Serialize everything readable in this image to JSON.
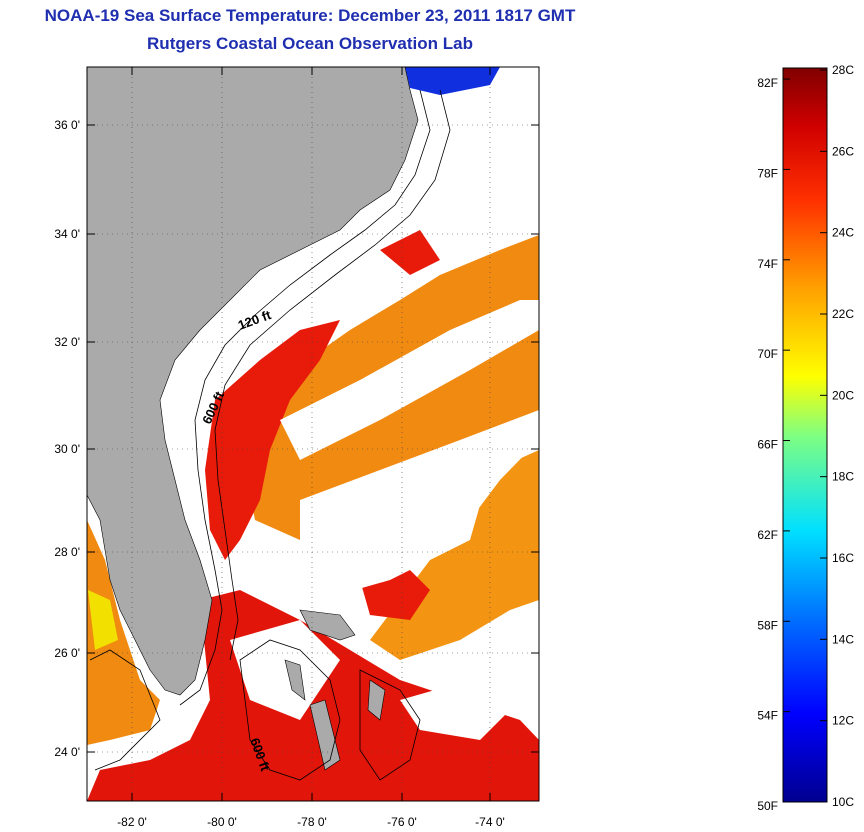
{
  "header": {
    "title": "NOAA-19 Sea Surface Temperature:  December 23, 2011 1817 GMT",
    "subtitle": "Rutgers Coastal Ocean Observation Lab"
  },
  "map": {
    "lat_labels": [
      "36 0'",
      "34 0'",
      "32 0'",
      "30 0'",
      "28 0'",
      "26 0'",
      "24 0'"
    ],
    "lon_labels": [
      "-82 0'",
      "-80 0'",
      "-78 0'",
      "-76 0'",
      "-74 0'"
    ],
    "contour_labels": [
      "120 ft",
      "600 ft",
      "600 ft"
    ],
    "colors": {
      "land": "#aaaaaa",
      "cloud": "#ffffff"
    }
  },
  "colorbar": {
    "fahrenheit_labels": [
      "82F",
      "78F",
      "74F",
      "70F",
      "66F",
      "62F",
      "58F",
      "54F",
      "50F"
    ],
    "celsius_labels": [
      "28C",
      "26C",
      "24C",
      "22C",
      "20C",
      "18C",
      "16C",
      "14C",
      "12C",
      "10C"
    ],
    "range_c": [
      10,
      28
    ]
  }
}
